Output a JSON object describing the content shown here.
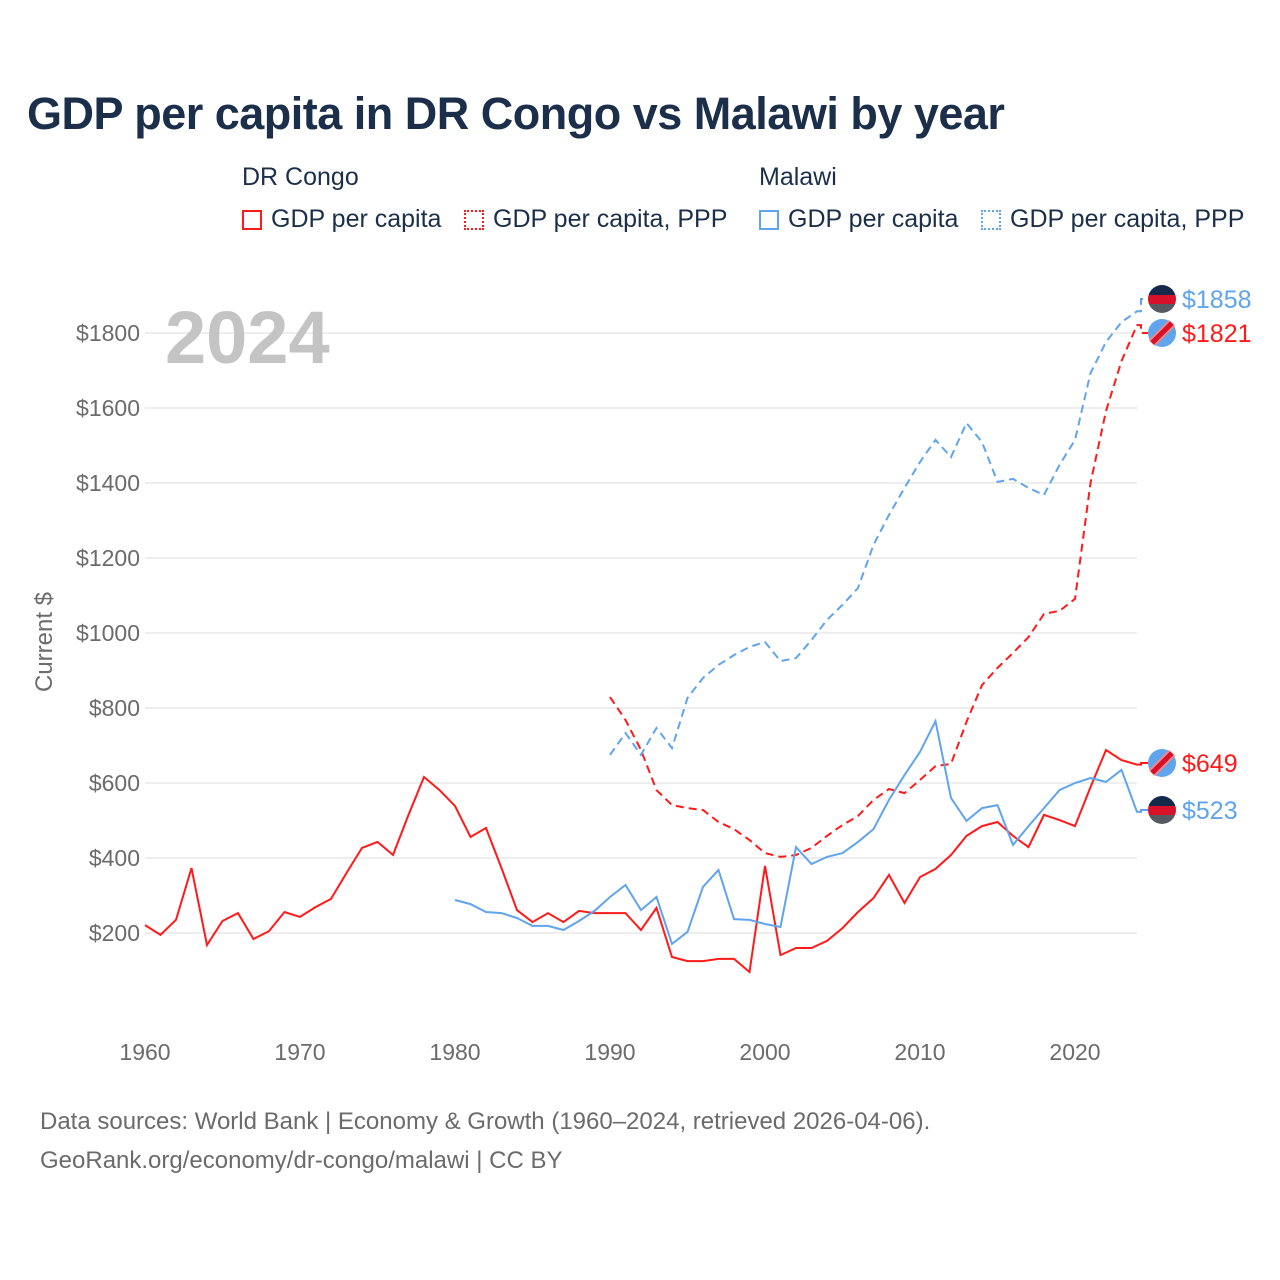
{
  "title": "GDP per capita in DR Congo vs Malawi by year",
  "legend": {
    "groups": [
      {
        "name": "DR Congo",
        "items": [
          "GDP per capita",
          "GDP per capita, PPP"
        ]
      },
      {
        "name": "Malawi",
        "items": [
          "GDP per capita",
          "GDP per capita, PPP"
        ]
      }
    ]
  },
  "year_label": "2024",
  "footer": {
    "line1": "Data sources: World Bank | Economy & Growth (1960–2024, retrieved 2026-04-06).",
    "line2": "GeoRank.org/economy/dr-congo/malawi | CC BY"
  },
  "colors": {
    "drc": "#ff1a1a",
    "malawi": "#5fa4ec"
  },
  "chart_data": {
    "type": "line",
    "title": "GDP per capita in DR Congo vs Malawi by year",
    "xlabel": "",
    "ylabel": "Current $",
    "xlim": [
      1960,
      2024
    ],
    "ylim": [
      0,
      1900
    ],
    "xticks": [
      1960,
      1970,
      1980,
      1990,
      2000,
      2010,
      2020
    ],
    "yticks": [
      200,
      400,
      600,
      800,
      1000,
      1200,
      1400,
      1600,
      1800
    ],
    "ytick_labels": [
      "$200",
      "$400",
      "$600",
      "$800",
      "$1000",
      "$1200",
      "$1400",
      "$1600",
      "$1800"
    ],
    "grid": true,
    "series": [
      {
        "name": "DR Congo GDP per capita",
        "country": "drc",
        "dashed": false,
        "start": 1960,
        "end_label": "$649",
        "values": [
          221,
          195,
          235,
          373,
          168,
          232,
          253,
          184,
          205,
          256,
          243,
          269,
          291,
          360,
          427,
          443,
          408,
          515,
          616,
          581,
          539,
          456,
          480,
          373,
          261,
          229,
          253,
          229,
          259,
          253,
          253,
          253,
          208,
          267,
          136,
          125,
          125,
          131,
          131,
          96,
          379,
          141,
          160,
          160,
          179,
          213,
          256,
          293,
          355,
          280,
          349,
          371,
          408,
          459,
          485,
          496,
          459,
          429,
          515,
          501,
          485,
          589,
          688,
          661,
          649
        ]
      },
      {
        "name": "DR Congo GDP per capita, PPP",
        "country": "drc",
        "dashed": true,
        "start": 1990,
        "end_label": "$1821",
        "values": [
          829,
          768,
          688,
          581,
          541,
          533,
          528,
          496,
          477,
          448,
          413,
          403,
          408,
          427,
          459,
          488,
          512,
          555,
          584,
          573,
          608,
          645,
          651,
          763,
          861,
          907,
          947,
          989,
          1051,
          1059,
          1091,
          1400,
          1592,
          1725,
          1821
        ]
      },
      {
        "name": "Malawi GDP per capita",
        "country": "malawi",
        "dashed": false,
        "start": 1980,
        "end_label": "$523",
        "values": [
          288,
          277,
          256,
          253,
          240,
          219,
          219,
          208,
          232,
          259,
          296,
          328,
          261,
          296,
          171,
          203,
          323,
          368,
          237,
          235,
          224,
          216,
          429,
          384,
          403,
          413,
          443,
          477,
          555,
          621,
          683,
          765,
          560,
          499,
          533,
          541,
          435,
          485,
          533,
          581,
          600,
          613,
          603,
          635,
          523
        ]
      },
      {
        "name": "Malawi GDP per capita, PPP",
        "country": "malawi",
        "dashed": true,
        "start": 1990,
        "end_label": "$1858",
        "values": [
          675,
          733,
          675,
          747,
          693,
          827,
          880,
          915,
          941,
          963,
          976,
          925,
          933,
          981,
          1035,
          1075,
          1120,
          1235,
          1315,
          1387,
          1456,
          1515,
          1469,
          1560,
          1509,
          1403,
          1411,
          1387,
          1368,
          1448,
          1515,
          1693,
          1776,
          1829,
          1858
        ]
      }
    ]
  }
}
